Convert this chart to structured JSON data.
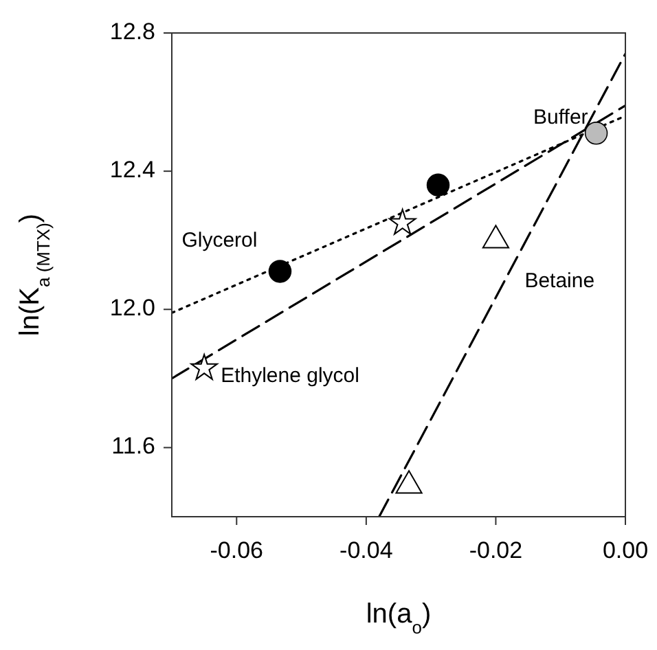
{
  "chart_data": {
    "type": "scatter",
    "xlabel": "ln(a$_{o}$)",
    "ylabel": "ln(K$_{a (MTX)}$)",
    "xlim": [
      -0.07,
      0
    ],
    "xticks": [
      {
        "value": -0.06,
        "label": "-0.06"
      },
      {
        "value": -0.04,
        "label": "-0.04"
      },
      {
        "value": -0.02,
        "label": "-0.02"
      },
      {
        "value": 0,
        "label": "0.00"
      }
    ],
    "ylim": [
      11.4,
      12.8
    ],
    "yticks": [
      11.6,
      {
        "value": 12,
        "label": "12.0"
      },
      12.4,
      12.8
    ],
    "grid": false,
    "series": [
      {
        "type": "line",
        "color": "#000000",
        "x": [
          -0.07,
          0
        ],
        "values": [
          11.99,
          12.56
        ],
        "line_style": "dotted",
        "marker": "none"
      },
      {
        "type": "line",
        "color": "#000000",
        "x": [
          -0.07,
          0
        ],
        "values": [
          11.8,
          12.59
        ],
        "line_style": "dashed",
        "marker": "none"
      },
      {
        "type": "line",
        "color": "#000000",
        "x": [
          -0.038,
          0
        ],
        "values": [
          11.4,
          12.74
        ],
        "line_style": "dashed",
        "marker": "none"
      },
      {
        "name": "Glycerol",
        "color": "#000000",
        "x": [
          -0.0533,
          -0.0289
        ],
        "values": [
          12.11,
          12.36
        ],
        "marker": "circle"
      },
      {
        "name": "Ethylene glycol",
        "color": "#ffffff",
        "x": [
          -0.0344,
          -0.065
        ],
        "values": [
          12.25,
          11.83
        ],
        "marker": "star"
      },
      {
        "name": "Betaine",
        "color": "#ffffff",
        "x": [
          -0.02,
          -0.0334
        ],
        "values": [
          12.2,
          11.49
        ],
        "marker": "triangle"
      },
      {
        "name": "Buffer",
        "color": "#bbbbbb",
        "x": [
          -0.0045
        ],
        "values": [
          12.51
        ],
        "marker": "circle"
      }
    ]
  }
}
